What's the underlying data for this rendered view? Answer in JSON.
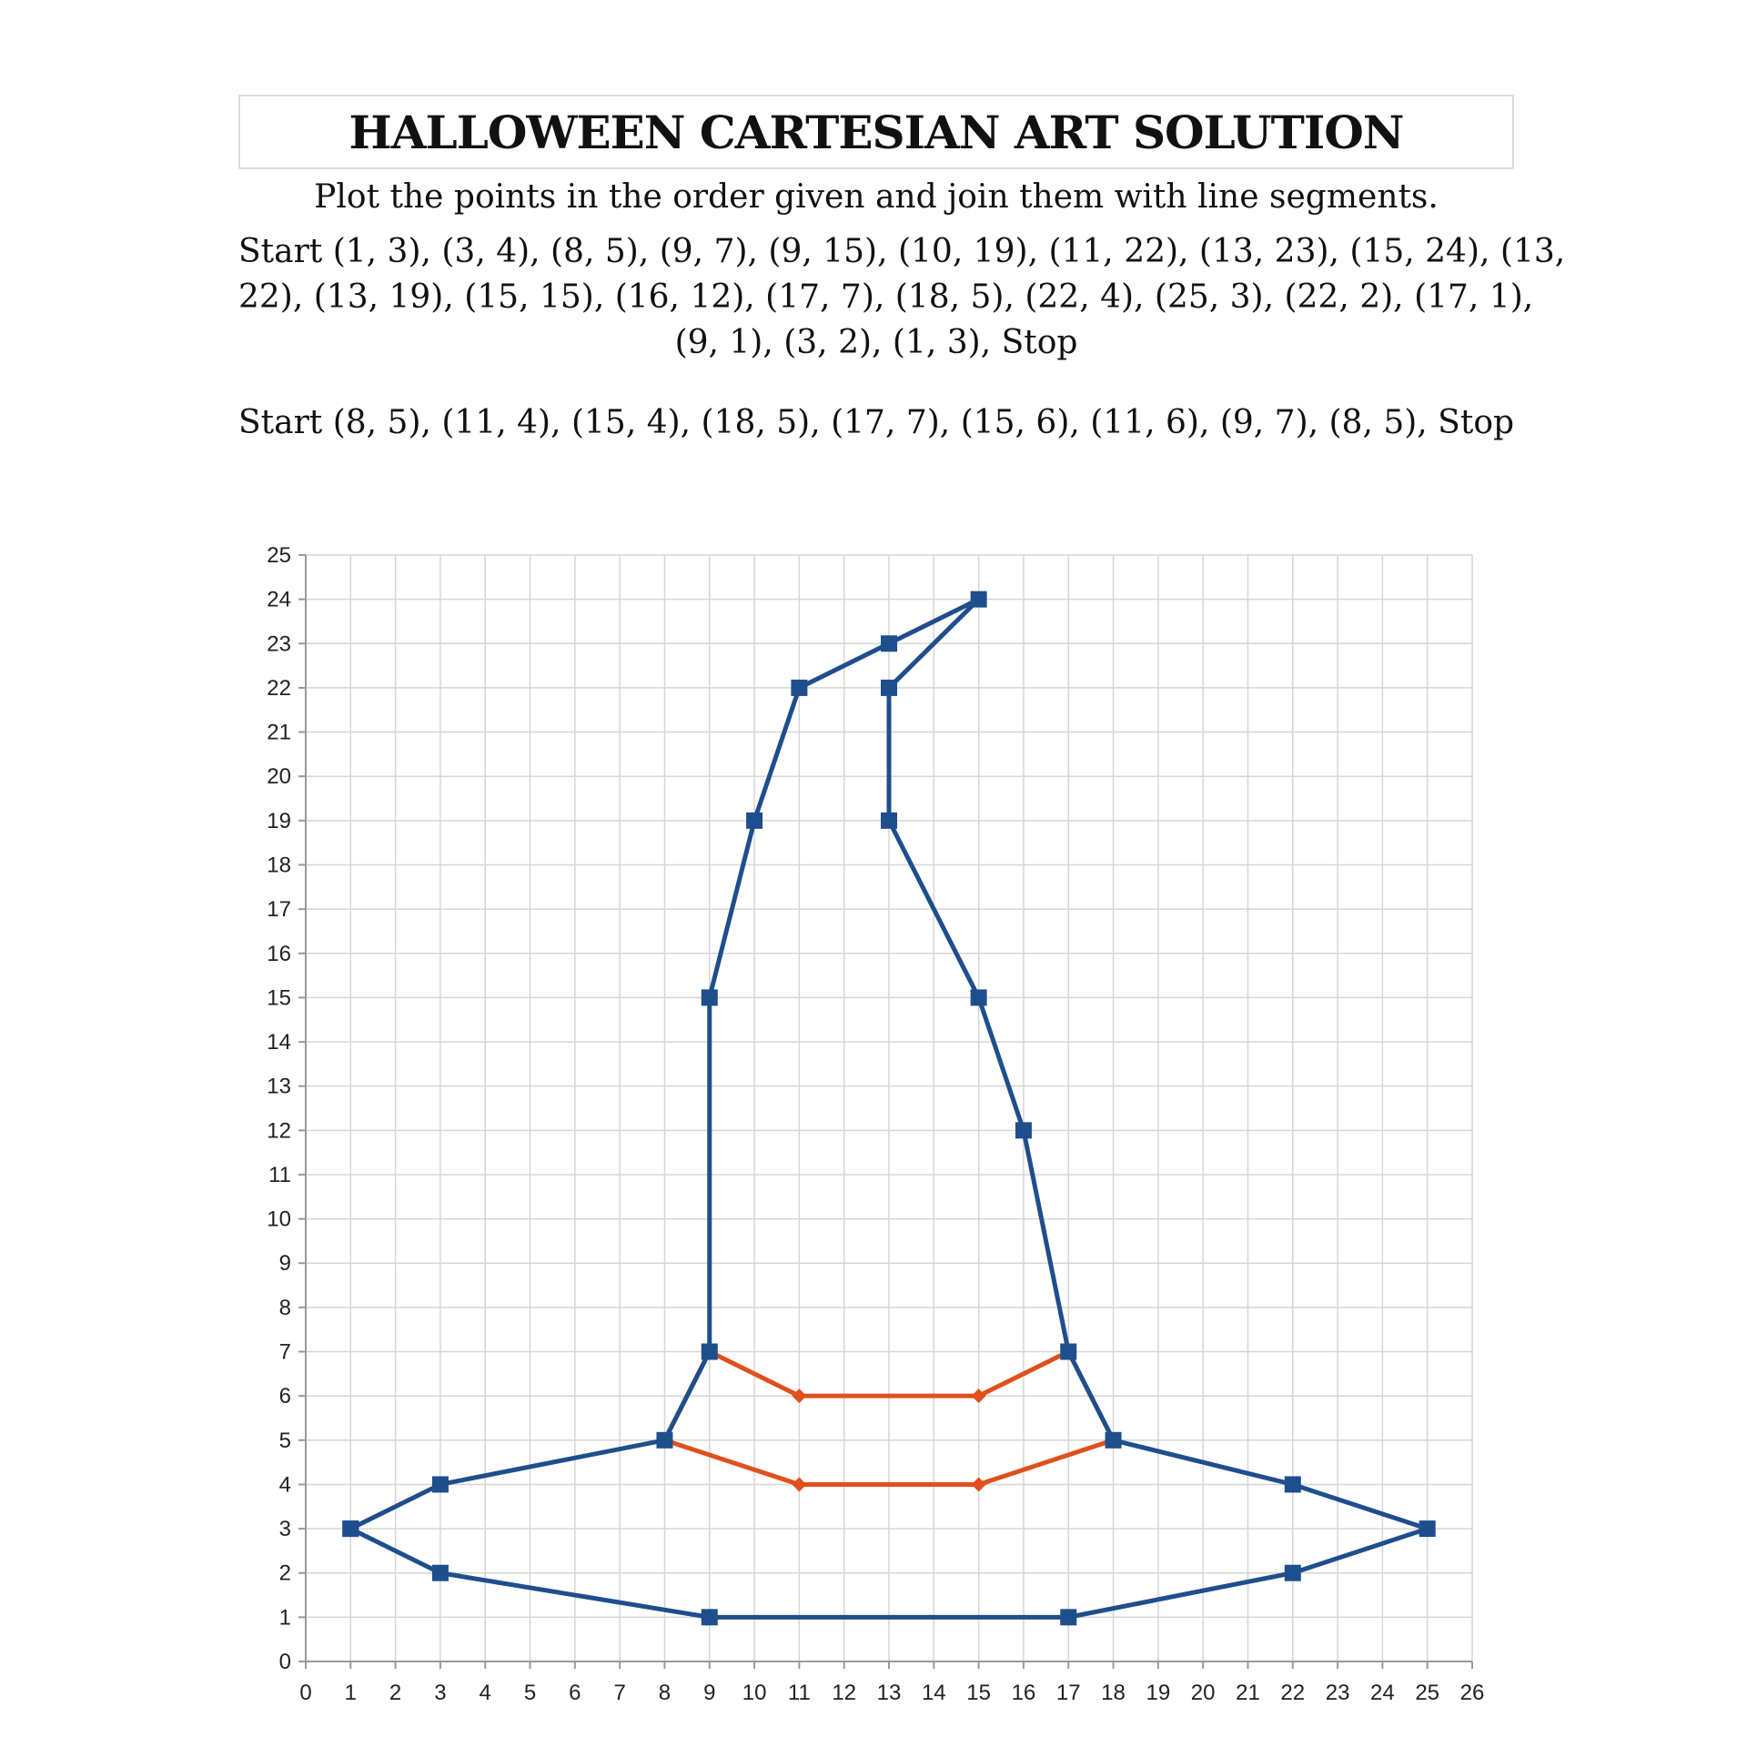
{
  "title": "HALLOWEEN CARTESIAN ART SOLUTION",
  "instruction": "Plot the points in the order given and join them with line segments.",
  "point_sets": [
    {
      "lines": [
        "Start  (1, 3), (3, 4), (8, 5), (9, 7), (9, 15), (10, 19), (11, 22), (13, 23), (15, 24), (13,",
        "22), (13, 19), (15, 15), (16, 12), (17, 7), (18, 5), (22, 4), (25, 3), (22, 2), (17, 1),",
        "(9, 1), (3, 2), (1, 3),   Stop"
      ]
    },
    {
      "lines": [
        "Start  (8, 5), (11, 4), (15, 4), (18, 5), (17, 7), (15, 6), (11, 6), (9, 7), (8, 5),   Stop"
      ]
    }
  ],
  "chart_data": {
    "type": "line",
    "title": "",
    "xlabel": "",
    "ylabel": "",
    "xlim": [
      0,
      26
    ],
    "ylim": [
      0,
      25
    ],
    "x_ticks": [
      0,
      1,
      2,
      3,
      4,
      5,
      6,
      7,
      8,
      9,
      10,
      11,
      12,
      13,
      14,
      15,
      16,
      17,
      18,
      19,
      20,
      21,
      22,
      23,
      24,
      25,
      26
    ],
    "y_ticks": [
      0,
      1,
      2,
      3,
      4,
      5,
      6,
      7,
      8,
      9,
      10,
      11,
      12,
      13,
      14,
      15,
      16,
      17,
      18,
      19,
      20,
      21,
      22,
      23,
      24,
      25
    ],
    "grid": true,
    "series": [
      {
        "color": "#1f4e8c",
        "marker": "square",
        "points": [
          [
            1,
            3
          ],
          [
            3,
            4
          ],
          [
            8,
            5
          ],
          [
            9,
            7
          ],
          [
            9,
            15
          ],
          [
            10,
            19
          ],
          [
            11,
            22
          ],
          [
            13,
            23
          ],
          [
            15,
            24
          ],
          [
            13,
            22
          ],
          [
            13,
            19
          ],
          [
            15,
            15
          ],
          [
            16,
            12
          ],
          [
            17,
            7
          ],
          [
            18,
            5
          ],
          [
            22,
            4
          ],
          [
            25,
            3
          ],
          [
            22,
            2
          ],
          [
            17,
            1
          ],
          [
            9,
            1
          ],
          [
            3,
            2
          ],
          [
            1,
            3
          ]
        ]
      },
      {
        "color": "#e0501e",
        "marker": "diamond",
        "points": [
          [
            8,
            5
          ],
          [
            11,
            4
          ],
          [
            15,
            4
          ],
          [
            18,
            5
          ],
          [
            17,
            7
          ],
          [
            15,
            6
          ],
          [
            11,
            6
          ],
          [
            9,
            7
          ],
          [
            8,
            5
          ]
        ]
      }
    ]
  }
}
